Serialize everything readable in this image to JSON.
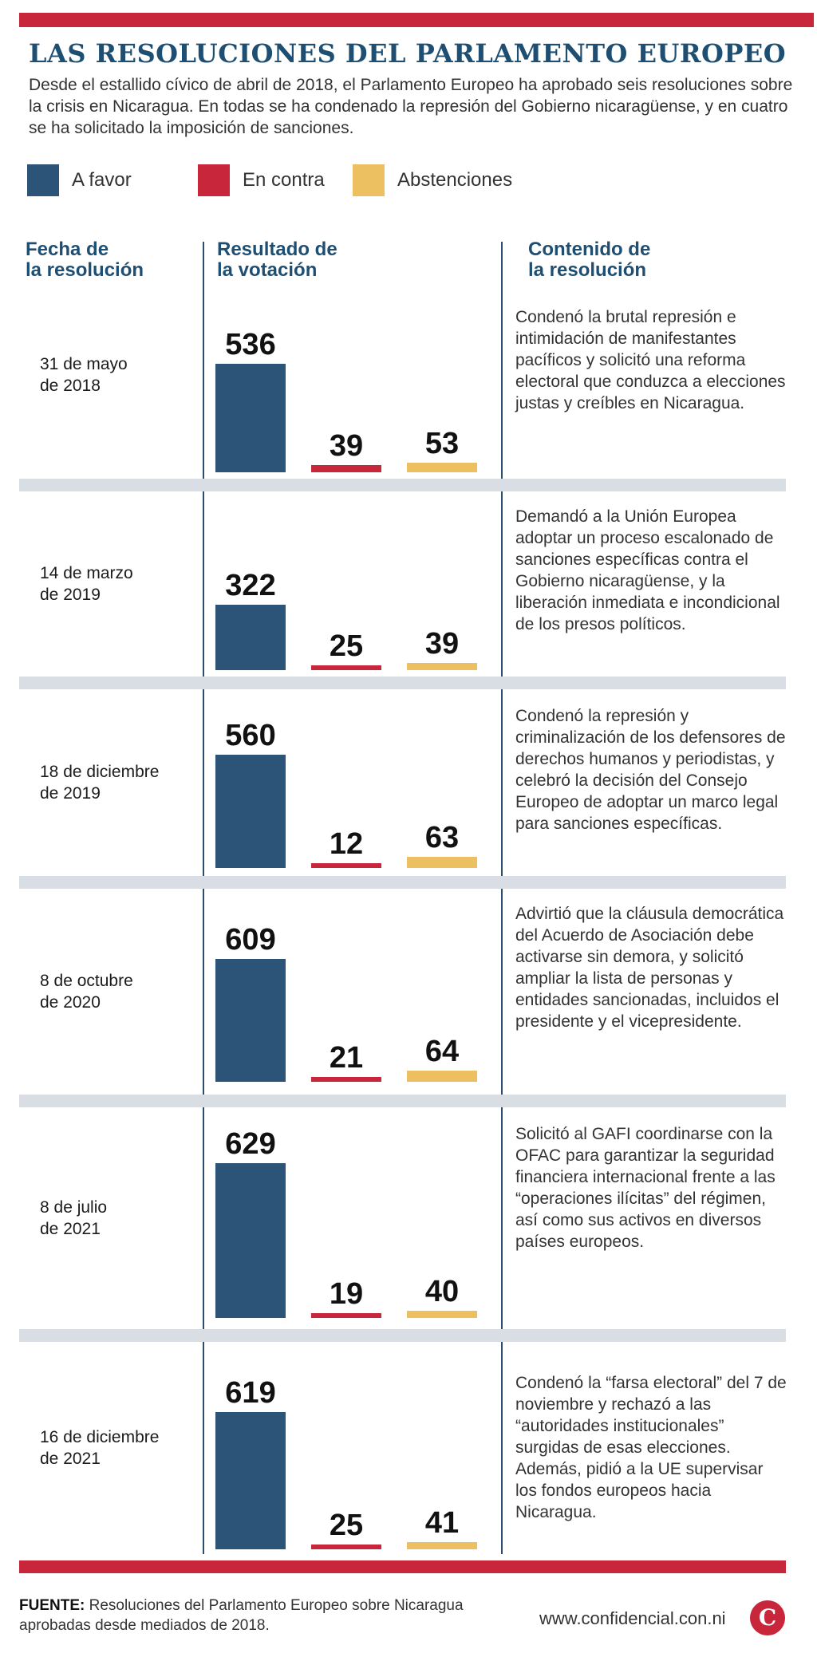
{
  "header": {
    "title": "LAS RESOLUCIONES DEL PARLAMENTO EUROPEO",
    "intro": "Desde el estallido cívico de abril de 2018, el Parlamento Europeo ha aprobado seis resoluciones sobre la crisis en Nicaragua. En todas se ha condenado la represión del Gobierno nicaragüense, y en cuatro se ha solicitado la imposición de sanciones."
  },
  "columns": {
    "date": "Fecha de\nla resolución",
    "result": "Resultado de\nla votación",
    "content": "Contenido de\nla resolución"
  },
  "colors": {
    "favor": "#2c5478",
    "contra": "#c8263a",
    "abst": "#ecc060"
  },
  "chart_data": {
    "type": "bar",
    "series": [
      {
        "name": "A favor",
        "values": [
          536,
          322,
          560,
          609,
          629,
          619
        ]
      },
      {
        "name": "En contra",
        "values": [
          39,
          25,
          12,
          21,
          19,
          25
        ]
      },
      {
        "name": "Abstenciones",
        "values": [
          53,
          39,
          63,
          64,
          40,
          41
        ]
      }
    ],
    "rows": [
      {
        "date": "31 de mayo\nde 2018",
        "favor": 536,
        "contra": 39,
        "abst": 53,
        "content": "Condenó la brutal represión e intimidación de manifestantes pacíficos y solicitó una reforma electoral que conduzca a elecciones justas y creíbles en Nicaragua."
      },
      {
        "date": "14 de marzo\nde 2019",
        "favor": 322,
        "contra": 25,
        "abst": 39,
        "content": "Demandó a la Unión Europea adoptar un proceso escalonado de sanciones específicas contra el Gobierno nicaragüense, y la liberación inmediata e incondicional de los presos políticos."
      },
      {
        "date": "18 de diciembre\nde 2019",
        "favor": 560,
        "contra": 12,
        "abst": 63,
        "content": "Condenó la represión y criminalización de los defensores de derechos humanos y periodistas, y celebró la decisión del Consejo Europeo de adoptar un marco legal para sanciones específicas."
      },
      {
        "date": "8 de octubre\nde 2020",
        "favor": 609,
        "contra": 21,
        "abst": 64,
        "content": "Advirtió que la cláusula democrática del Acuerdo de Asociación debe activarse sin demora, y solicitó ampliar la lista de personas y entidades sancionadas, incluidos el presidente y el vicepresidente."
      },
      {
        "date": "8 de julio\nde 2021",
        "favor": 629,
        "contra": 19,
        "abst": 40,
        "content": "Solicitó al GAFI coordinarse con la OFAC para garantizar la seguridad financiera internacional frente a las “operaciones ilícitas” del régimen, así como sus activos en diversos países europeos."
      },
      {
        "date": "16 de diciembre\nde 2021",
        "favor": 619,
        "contra": 25,
        "abst": 41,
        "content": "Condenó la “farsa electoral” del 7 de noviembre y rechazó a las “autoridades institucionales” surgidas de esas elecciones. Además, pidió a la UE supervisar los fondos europeos hacia Nicaragua."
      }
    ]
  },
  "footer": {
    "source_label": "FUENTE:",
    "source_text": " Resoluciones del Parlamento Europeo sobre Nicaragua aprobadas desde mediados de 2018.",
    "url": "www.confidencial.con.ni",
    "logo_letter": "C"
  }
}
